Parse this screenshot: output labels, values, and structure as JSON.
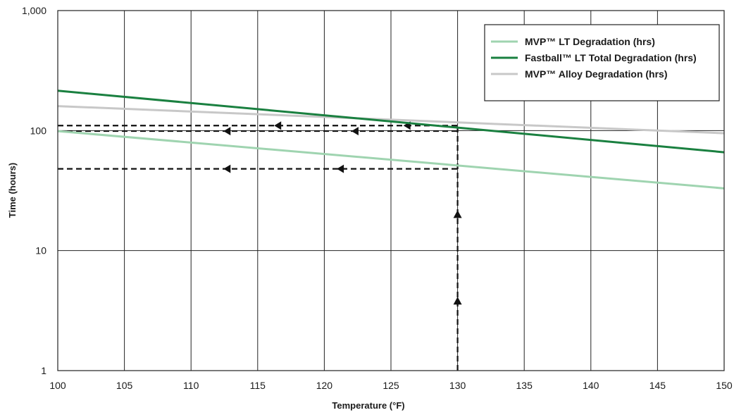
{
  "chart_data": {
    "type": "line",
    "title": "",
    "xlabel": "Temperature (°F)",
    "ylabel": "Time (hours)",
    "xlim": [
      100,
      150
    ],
    "ylim": [
      1,
      1000
    ],
    "y_scale": "log",
    "grid": true,
    "legend_position": "top-right",
    "x_ticks": [
      100,
      105,
      110,
      115,
      120,
      125,
      130,
      135,
      140,
      145,
      150
    ],
    "x_tick_labels": [
      "100",
      "105",
      "110",
      "115",
      "120",
      "125",
      "130",
      "135",
      "140",
      "145",
      "150"
    ],
    "y_ticks": [
      1,
      10,
      100,
      1000
    ],
    "y_tick_labels": [
      "1",
      "10",
      "100",
      "1,000"
    ],
    "series": [
      {
        "name": "MVP™ LT Degradation (hrs)",
        "color": "#9fd4b0",
        "x": [
          100,
          150
        ],
        "values": [
          99,
          33
        ]
      },
      {
        "name": "Fastball™ LT Total Degradation (hrs)",
        "color": "#1a8040",
        "x": [
          100,
          150
        ],
        "values": [
          215,
          66
        ]
      },
      {
        "name": "MVP™ Alloy Degradation (hrs)",
        "color": "#c8c8c8",
        "x": [
          100,
          150
        ],
        "values": [
          160,
          95
        ]
      }
    ],
    "annotations": {
      "vertical_guide": {
        "x": 130,
        "y_from": 1,
        "y_to": 110,
        "arrow_y": [
          3.8,
          20
        ]
      },
      "horizontal_guides": [
        {
          "y": 110,
          "x_from": 100,
          "x_to": 130,
          "arrow_x": [
            116.5,
            126.2
          ]
        },
        {
          "y": 99,
          "x_from": 100,
          "x_to": 130,
          "arrow_x": [
            112.7,
            122.3
          ]
        },
        {
          "y": 48,
          "x_from": 100,
          "x_to": 130,
          "arrow_x": [
            112.7,
            121.2
          ]
        }
      ]
    }
  }
}
